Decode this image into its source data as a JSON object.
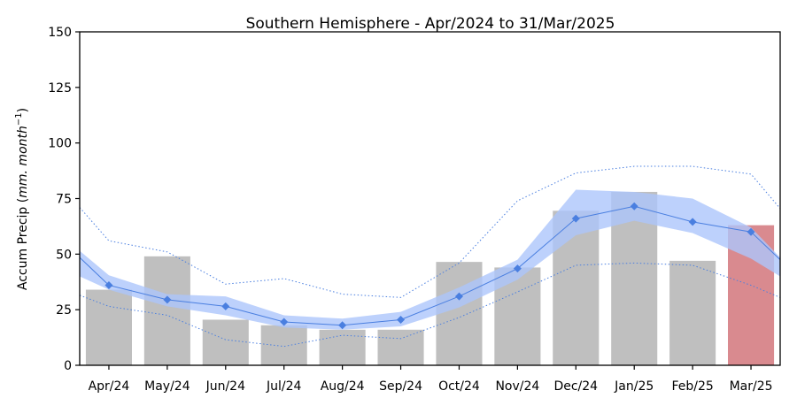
{
  "chart_data": {
    "type": "bar",
    "title": "Southern Hemisphere - Apr/2024 to 31/Mar/2025",
    "ylabel_plain": "Accum Precip (",
    "ylabel_italic": "mm. month",
    "ylabel_sup": "−1",
    "ylabel_close": ")",
    "ylim": [
      0,
      150
    ],
    "yticks": [
      0,
      25,
      50,
      75,
      100,
      125,
      150
    ],
    "categories": [
      "Apr/24",
      "May/24",
      "Jun/24",
      "Jul/24",
      "Aug/24",
      "Sep/24",
      "Oct/24",
      "Nov/24",
      "Dec/24",
      "Jan/25",
      "Feb/25",
      "Mar/25"
    ],
    "bars": {
      "values": [
        34,
        49,
        20.5,
        18,
        16,
        16,
        46.5,
        44,
        69.5,
        78,
        47,
        63
      ],
      "color": "#bfbfbf",
      "highlight_index": 11,
      "highlight_color": "#d98a8f"
    },
    "climatology_mean": {
      "values": [
        36,
        29.5,
        26.5,
        19.5,
        18,
        20.5,
        31,
        43.5,
        66,
        71.5,
        64.5,
        60
      ],
      "color": "#4a7fe0",
      "marker": "diamond",
      "edge_left": 48.5,
      "edge_right": 47.5
    },
    "band": {
      "upper": [
        40.5,
        32,
        31,
        22.5,
        21,
        24,
        35,
        47.5,
        79,
        78,
        75,
        62
      ],
      "lower": [
        34,
        26.5,
        22.5,
        17,
        16,
        17.5,
        26,
        38.5,
        58.5,
        65,
        59.5,
        48
      ],
      "edge_left_upper": 51.5,
      "edge_left_lower": 40,
      "edge_right_upper": 48.5,
      "edge_right_lower": 40,
      "color": "#adc6fb"
    },
    "envelope_upper": {
      "values": [
        56,
        51,
        36.5,
        39,
        32,
        30.5,
        46,
        74,
        86.5,
        89.5,
        89.5,
        86
      ],
      "edge_left": 71,
      "edge_right": 70.5
    },
    "envelope_lower": {
      "values": [
        26.5,
        22.5,
        11.5,
        8.5,
        13.5,
        12,
        21.5,
        33,
        45,
        46,
        45,
        36
      ],
      "edge_left": 31.5,
      "edge_right": 30.5
    }
  }
}
